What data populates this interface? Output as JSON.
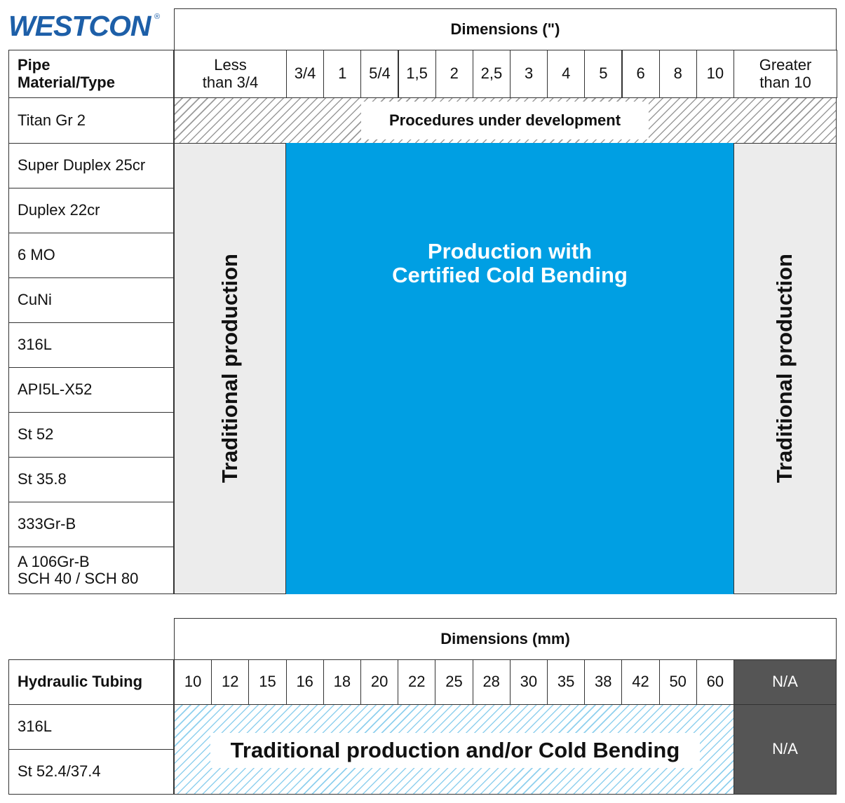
{
  "logo": "WESTCON",
  "logo_mark": "®",
  "pipe_table": {
    "dimensions_header": "Dimensions (\")",
    "row_header": "Pipe\nMaterial/Type",
    "columns": [
      "Less\nthan 3/4",
      "3/4",
      "1",
      "5/4",
      "1,5",
      "2",
      "2,5",
      "3",
      "4",
      "5",
      "6",
      "8",
      "10",
      "Greater\nthan 10"
    ],
    "rows": [
      "Titan Gr 2",
      "Super Duplex 25cr",
      "Duplex 22cr",
      "6 MO",
      "CuNi",
      "316L",
      "API5L-X52",
      "St 52",
      "St 35.8",
      "333Gr-B",
      "A 106Gr-B\nSCH 40 / SCH 80"
    ],
    "development_note": "Procedures under development",
    "traditional_left": "Traditional production",
    "traditional_right": "Traditional production",
    "cold_bending": "Production with\nCertified Cold Bending"
  },
  "tubing_table": {
    "dimensions_header": "Dimensions (mm)",
    "row_header": "Hydraulic Tubing",
    "columns": [
      "10",
      "12",
      "15",
      "16",
      "18",
      "20",
      "22",
      "25",
      "28",
      "30",
      "35",
      "38",
      "42",
      "50",
      "60"
    ],
    "na_header": "N/A",
    "rows": [
      "316L",
      "St 52.4/37.4"
    ],
    "note": "Traditional production and/or Cold Bending",
    "na_body": "N/A"
  }
}
